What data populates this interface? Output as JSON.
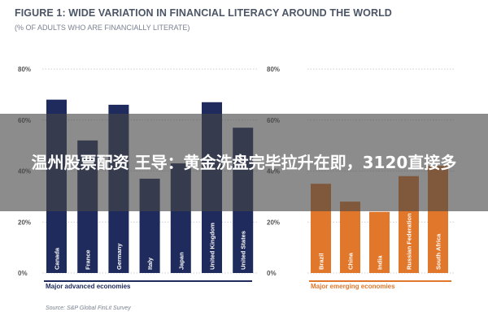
{
  "header": {
    "title": "FIGURE 1: WIDE VARIATION IN FINANCIAL LITERACY AROUND THE WORLD",
    "subtitle": "(% OF ADULTS WHO ARE FINANCIALLY LITERATE)"
  },
  "source": "Source: S&P Global FinLit Survey",
  "overlay": {
    "text": "温州股票配资 王导：黄金洗盘完毕拉升在即，3120直接多"
  },
  "colors": {
    "advanced": "#1f2b5c",
    "emerging": "#e0772a",
    "grid": "#b9bec8",
    "group_label_advanced": "#1f2b5c",
    "group_label_emerging": "#e0772a"
  },
  "chart_data": [
    {
      "type": "bar",
      "group_label": "Major advanced economies",
      "categories": [
        "Canada",
        "France",
        "Germany",
        "Italy",
        "Japan",
        "United Kingdom",
        "United States"
      ],
      "values": [
        68,
        52,
        66,
        37,
        43,
        67,
        57
      ],
      "ylim": [
        0,
        80
      ],
      "yticks": [
        "0%",
        "20%",
        "40%",
        "60%",
        "80%"
      ],
      "grid": true
    },
    {
      "type": "bar",
      "group_label": "Major emerging economies",
      "categories": [
        "Brazil",
        "China",
        "India",
        "Russian Federation",
        "South Africa"
      ],
      "values": [
        35,
        28,
        24,
        38,
        42
      ],
      "ylim": [
        0,
        80
      ],
      "yticks": [
        "0%",
        "20%",
        "40%",
        "60%",
        "80%"
      ],
      "grid": true
    }
  ]
}
